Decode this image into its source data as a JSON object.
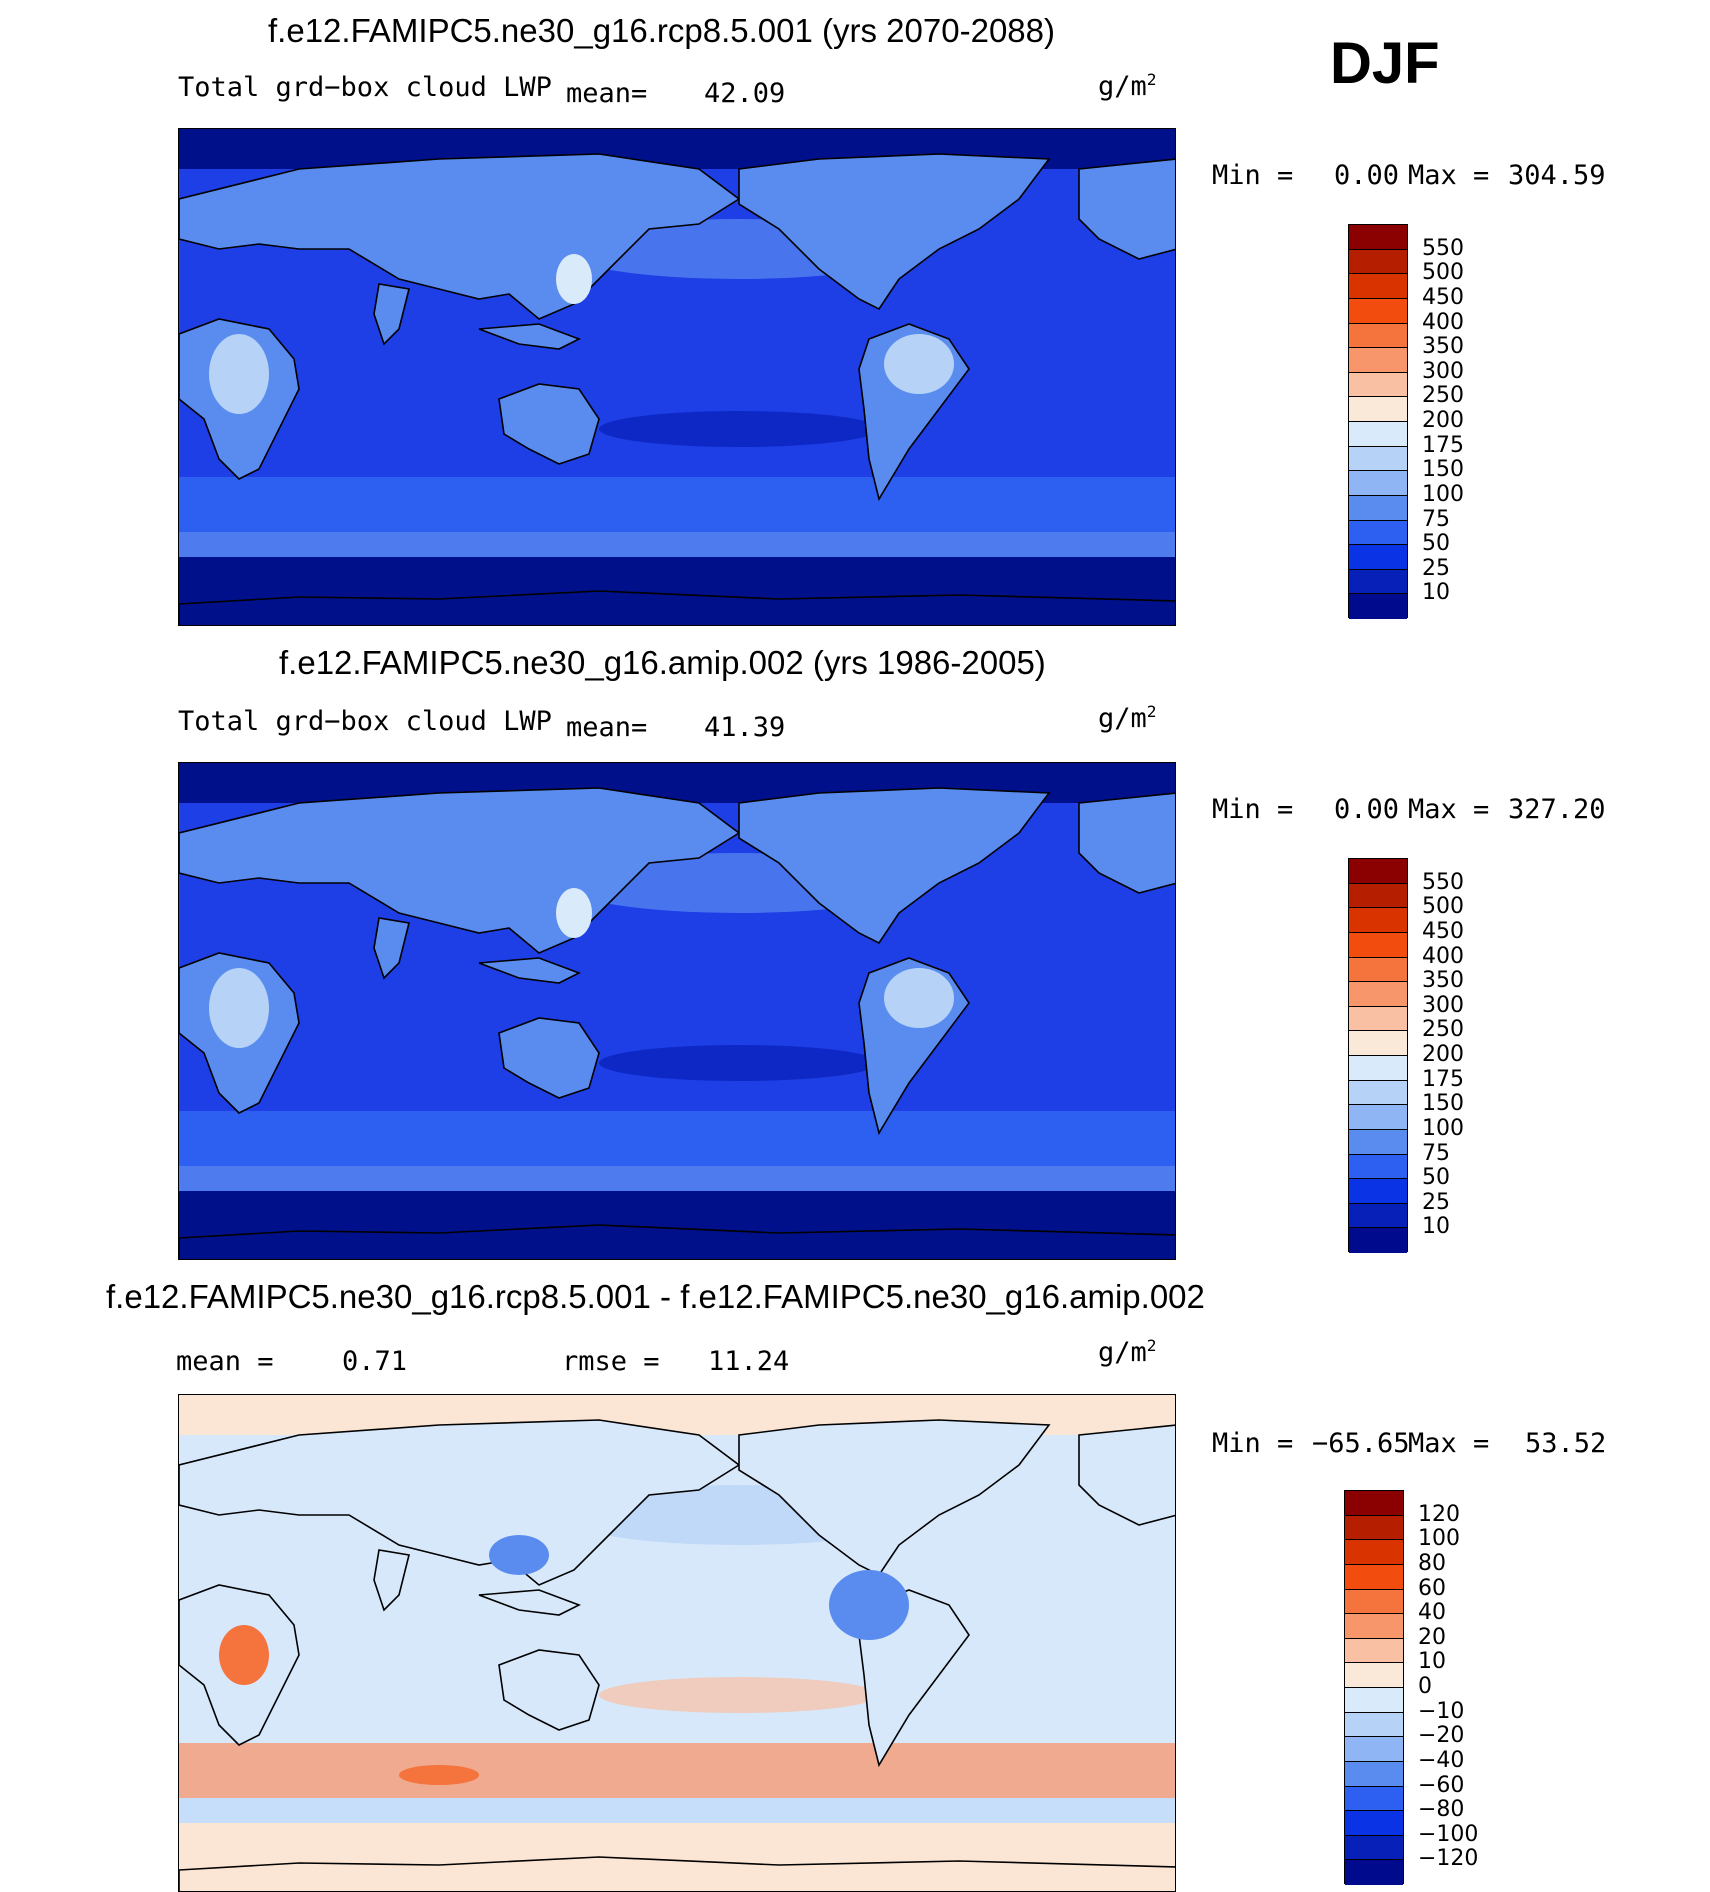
{
  "season": "DJF",
  "units_base": "g/m",
  "units_exp": "2",
  "panels": [
    {
      "title": "f.e12.FAMIPC5.ne30_g16.rcp8.5.001 (yrs 2070-2088)",
      "left_label": "Total grd−box cloud LWP",
      "mean_label": "mean=",
      "mean_value": "42.09",
      "min_label": "Min =",
      "min_value": "0.00",
      "max_label": "Max =",
      "max_value": "304.59",
      "ocean_color": "#1e3ee6",
      "polar_color": "#00108a",
      "levels": [
        "550",
        "500",
        "450",
        "400",
        "350",
        "300",
        "250",
        "200",
        "175",
        "150",
        "100",
        "75",
        "50",
        "25",
        "10"
      ],
      "colors": [
        "#8b0000",
        "#b51f00",
        "#d93400",
        "#f24d0f",
        "#f5733d",
        "#f7966b",
        "#f9c0a3",
        "#fae8d8",
        "#d9ebfa",
        "#b6d3f7",
        "#8fb5f5",
        "#5a8cf0",
        "#2d5ff0",
        "#0a33e6",
        "#0720b8",
        "#000a8c"
      ]
    },
    {
      "title": "f.e12.FAMIPC5.ne30_g16.amip.002 (yrs 1986-2005)",
      "left_label": "Total grd−box cloud LWP",
      "mean_label": "mean=",
      "mean_value": "41.39",
      "min_label": "Min =",
      "min_value": "0.00",
      "max_label": "Max =",
      "max_value": "327.20",
      "ocean_color": "#1e3ee6",
      "polar_color": "#00108a",
      "levels": [
        "550",
        "500",
        "450",
        "400",
        "350",
        "300",
        "250",
        "200",
        "175",
        "150",
        "100",
        "75",
        "50",
        "25",
        "10"
      ],
      "colors": [
        "#8b0000",
        "#b51f00",
        "#d93400",
        "#f24d0f",
        "#f5733d",
        "#f7966b",
        "#f9c0a3",
        "#fae8d8",
        "#d9ebfa",
        "#b6d3f7",
        "#8fb5f5",
        "#5a8cf0",
        "#2d5ff0",
        "#0a33e6",
        "#0720b8",
        "#000a8c"
      ]
    },
    {
      "title": "f.e12.FAMIPC5.ne30_g16.rcp8.5.001 - f.e12.FAMIPC5.ne30_g16.amip.002",
      "mean_label": "mean =",
      "mean_value": "0.71",
      "rmse_label": "rmse =",
      "rmse_value": "11.24",
      "min_label": "Min =",
      "min_value": "−65.65",
      "max_label": "Max =",
      "max_value": "53.52",
      "ocean_color": "#d7e8fb",
      "polar_color": "#fbe6d6",
      "levels": [
        "120",
        "100",
        "80",
        "60",
        "40",
        "20",
        "10",
        "0",
        "−10",
        "−20",
        "−40",
        "−60",
        "−80",
        "−100",
        "−120"
      ],
      "colors": [
        "#8b0000",
        "#b51f00",
        "#d93400",
        "#f24d0f",
        "#f5733d",
        "#f7966b",
        "#f9c0a3",
        "#fae8d8",
        "#d9ebfa",
        "#b6d3f7",
        "#8fb5f5",
        "#5a8cf0",
        "#2d5ff0",
        "#0a33e6",
        "#0720b8",
        "#000a8c"
      ]
    }
  ]
}
